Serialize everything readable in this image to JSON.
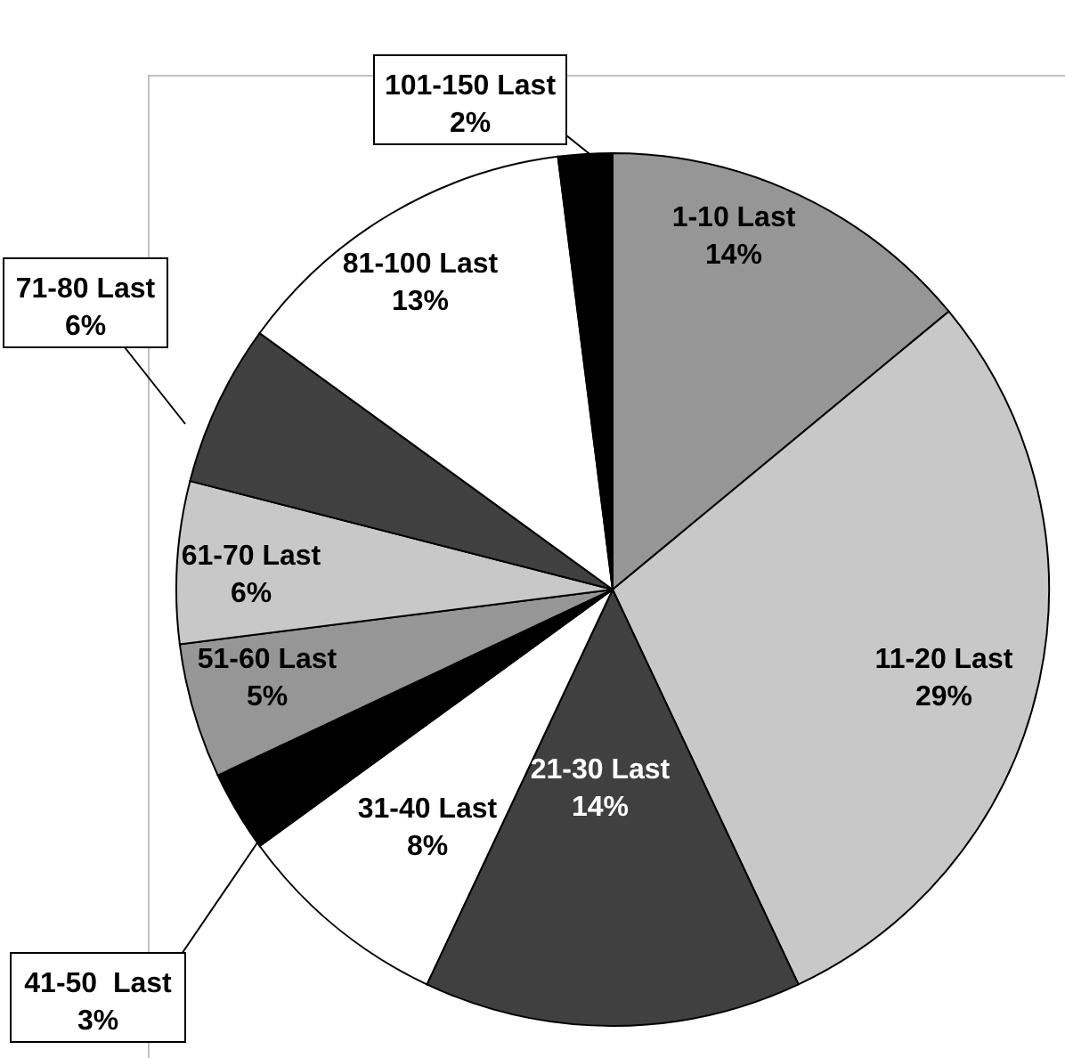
{
  "chart_data": {
    "type": "pie",
    "categories": [
      "1-10 Last",
      "11-20 Last",
      "21-30 Last",
      "31-40 Last",
      "41-50  Last",
      "51-60 Last",
      "61-70 Last",
      "71-80 Last",
      "81-100 Last",
      "101-150 Last"
    ],
    "values": [
      14,
      29,
      14,
      8,
      3,
      5,
      6,
      6,
      13,
      2
    ],
    "value_labels": [
      "14%",
      "29%",
      "14%",
      "8%",
      "3%",
      "5%",
      "6%",
      "6%",
      "13%",
      "2%"
    ],
    "colors": [
      "#969696",
      "#c8c8c8",
      "#404040",
      "#ffffff",
      "#000000",
      "#969696",
      "#c8c8c8",
      "#404040",
      "#ffffff",
      "#000000"
    ],
    "legend": false
  }
}
